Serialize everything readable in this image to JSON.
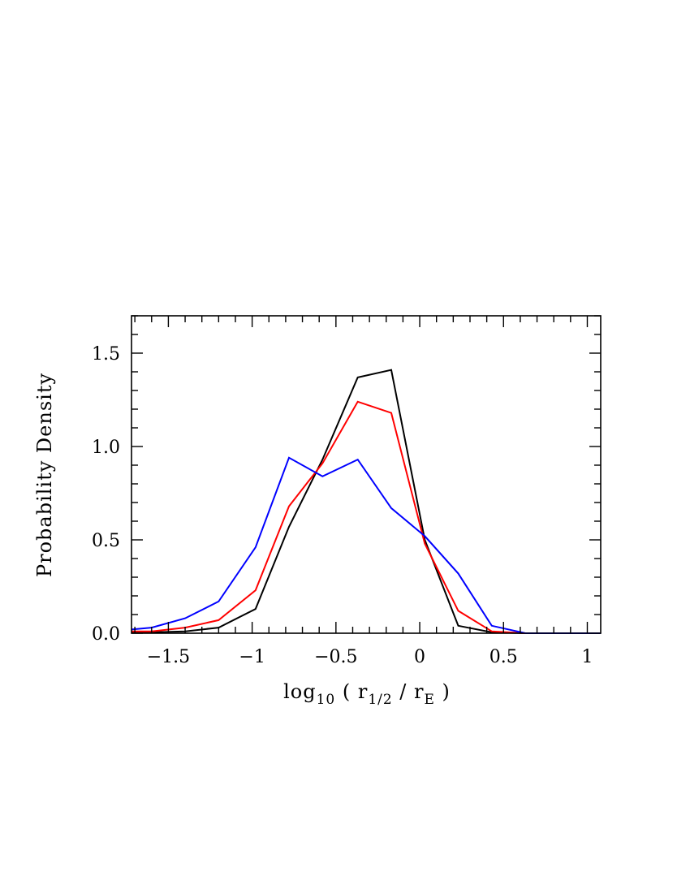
{
  "chart_data": {
    "type": "line",
    "title": "",
    "xlabel": {
      "base": "log",
      "base_sub": "10",
      "open": " ( ",
      "num": "r",
      "num_sub": "1/2",
      "slash": " / ",
      "den": "r",
      "den_sub": "E",
      "close": " )"
    },
    "ylabel": "Probability Density",
    "xlim": [
      -1.72,
      1.08
    ],
    "ylim": [
      0,
      1.7
    ],
    "xticks": [
      -1.5,
      -1,
      -0.5,
      0,
      0.5,
      1
    ],
    "xtick_labels": [
      "−1.5",
      "−1",
      "−0.5",
      "0",
      "0.5",
      "1"
    ],
    "yticks": [
      0,
      0.5,
      1.0,
      1.5
    ],
    "ytick_labels": [
      "0.0",
      "0.5",
      "1.0",
      "1.5"
    ],
    "grid": false,
    "legend": "none",
    "series": [
      {
        "color": "#000000",
        "x": [
          -1.72,
          -1.6,
          -1.4,
          -1.2,
          -0.98,
          -0.78,
          -0.58,
          -0.37,
          -0.17,
          0.03,
          0.23,
          0.43,
          0.63,
          1.08
        ],
        "y": [
          0.005,
          0.005,
          0.01,
          0.03,
          0.13,
          0.57,
          0.93,
          1.37,
          1.41,
          0.5,
          0.04,
          0.005,
          0.0,
          0.0
        ]
      },
      {
        "color": "#ff0000",
        "x": [
          -1.72,
          -1.6,
          -1.4,
          -1.2,
          -0.98,
          -0.78,
          -0.58,
          -0.37,
          -0.17,
          0.03,
          0.23,
          0.43,
          0.63,
          1.08
        ],
        "y": [
          0.01,
          0.01,
          0.03,
          0.07,
          0.23,
          0.68,
          0.91,
          1.24,
          1.18,
          0.48,
          0.12,
          0.01,
          0.0,
          0.0
        ]
      },
      {
        "color": "#0000ff",
        "x": [
          -1.72,
          -1.6,
          -1.4,
          -1.2,
          -0.98,
          -0.78,
          -0.58,
          -0.37,
          -0.17,
          0.03,
          0.23,
          0.43,
          0.63,
          1.08
        ],
        "y": [
          0.02,
          0.03,
          0.08,
          0.17,
          0.46,
          0.94,
          0.84,
          0.93,
          0.67,
          0.52,
          0.32,
          0.04,
          0.0,
          0.0
        ]
      }
    ]
  }
}
